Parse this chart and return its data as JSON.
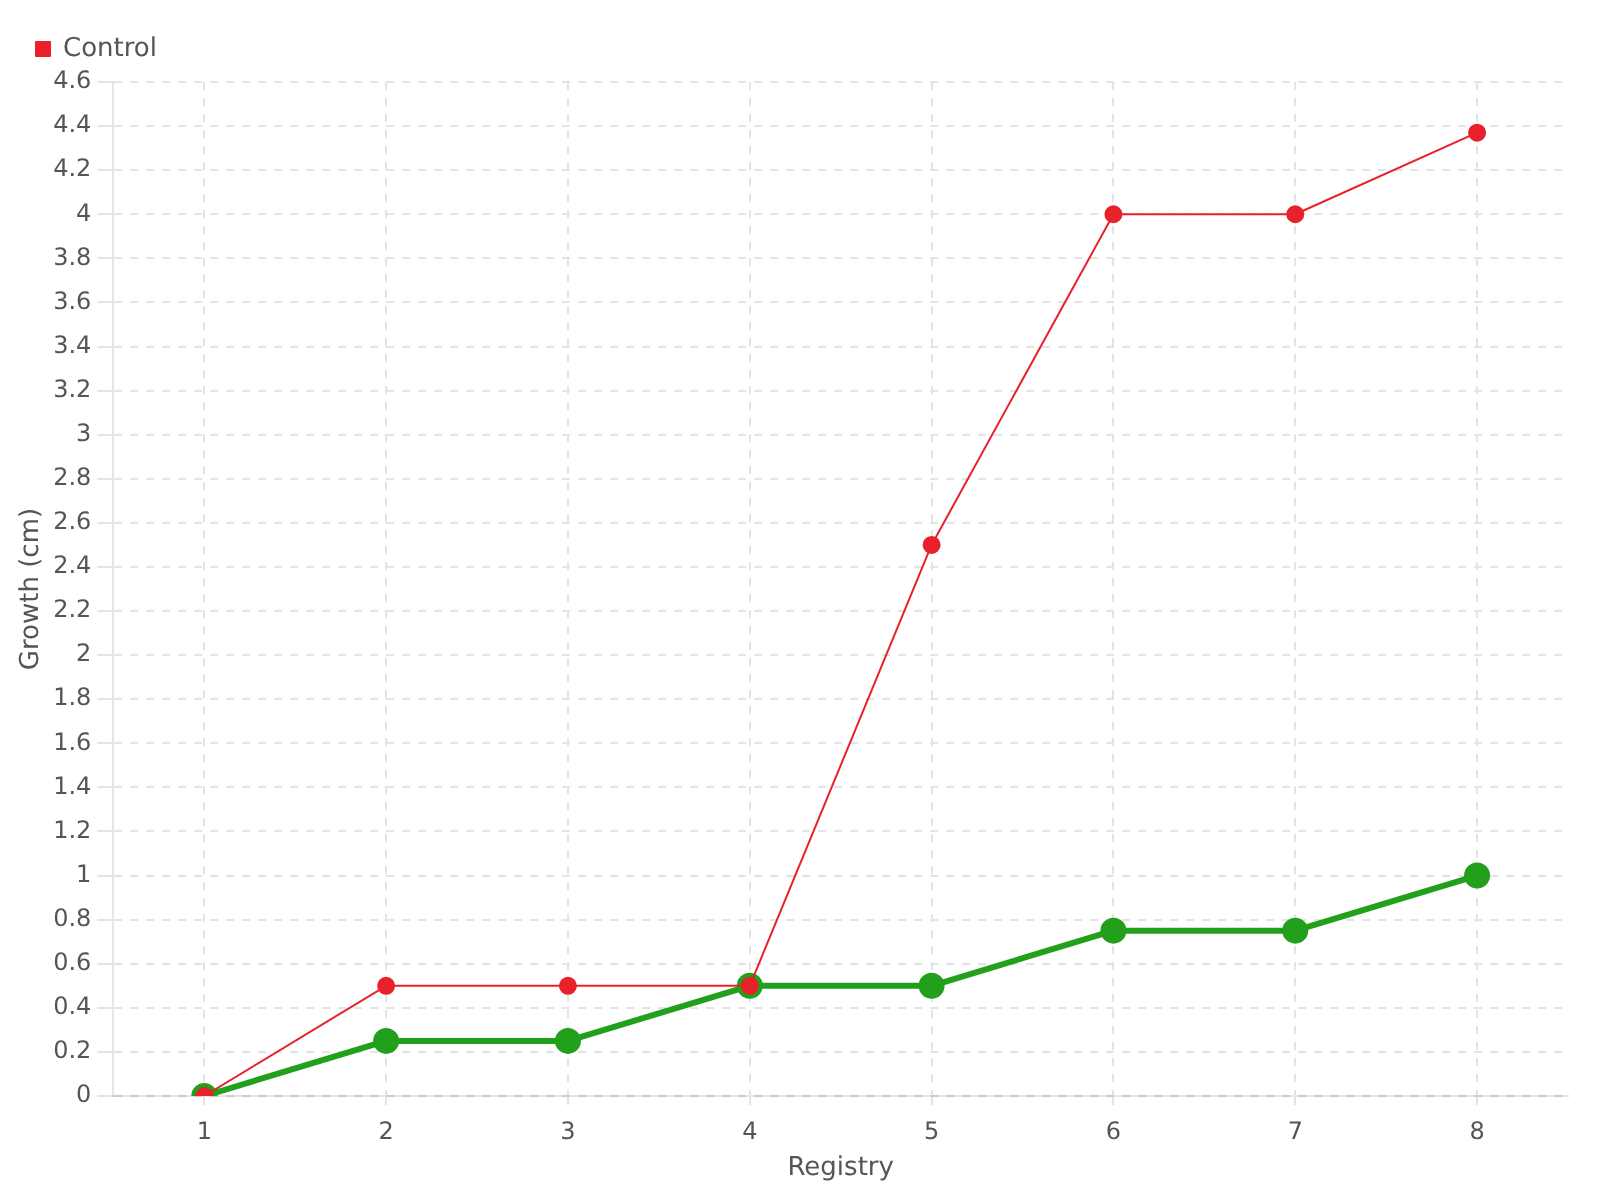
{
  "chart_data": {
    "type": "line",
    "xlabel": "Registry",
    "ylabel": "Growth (cm)",
    "categories": [
      "1",
      "2",
      "3",
      "4",
      "5",
      "6",
      "7",
      "8"
    ],
    "series": [
      {
        "color": "#22a01c",
        "values": [
          0,
          0.25,
          0.25,
          0.5,
          0.5,
          0.75,
          0.75,
          1
        ]
      },
      {
        "name": "Control",
        "color": "#e8212a",
        "values": [
          0,
          0.5,
          0.5,
          0.5,
          2.5,
          4,
          4,
          4.37
        ]
      }
    ],
    "ylim": [
      0,
      4.6
    ],
    "yticks": [
      0,
      0.2,
      0.4,
      0.6,
      0.8,
      1,
      1.2,
      1.4,
      1.6,
      1.8,
      2,
      2.2,
      2.4,
      2.6,
      2.8,
      3,
      3.2,
      3.4,
      3.6,
      3.8,
      4,
      4.2,
      4.4,
      4.6
    ],
    "grid": true,
    "legend": "top left",
    "marker": "circle",
    "line_style": "solid"
  }
}
